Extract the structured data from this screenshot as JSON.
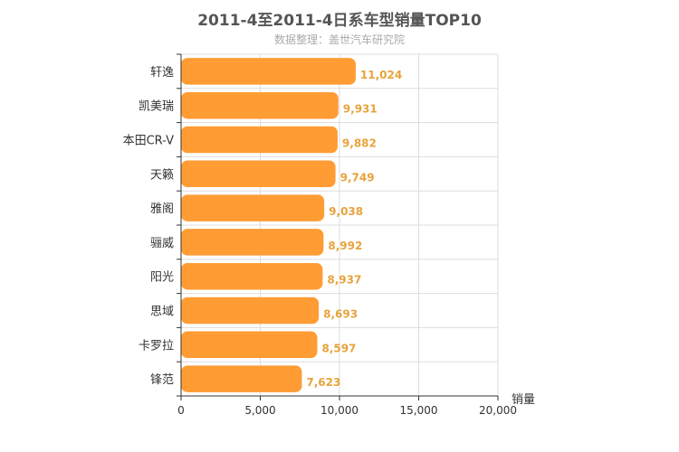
{
  "title": "2011-4至2011-4日系车型销量TOP10",
  "subtitle": "数据整理：盖世汽车研究院",
  "colors": {
    "bar": "#ff9c34",
    "value_label": "#e8a33c",
    "grid": "#dddddd",
    "axis": "#333333"
  },
  "chart_data": {
    "type": "bar",
    "orientation": "horizontal",
    "categories": [
      "轩逸",
      "凯美瑞",
      "本田CR-V",
      "天籁",
      "雅阁",
      "骊威",
      "阳光",
      "思域",
      "卡罗拉",
      "锋范"
    ],
    "values": [
      11024,
      9931,
      9882,
      9749,
      9038,
      8992,
      8937,
      8693,
      8597,
      7623
    ],
    "value_labels": [
      "11,024",
      "9,931",
      "9,882",
      "9,749",
      "9,038",
      "8,992",
      "8,937",
      "8,693",
      "8,597",
      "7,623"
    ],
    "xlabel": "销量",
    "ylabel": "",
    "xlim": [
      0,
      20000
    ],
    "x_ticks": [
      0,
      5000,
      10000,
      15000,
      20000
    ],
    "x_tick_labels": [
      "0",
      "5,000",
      "10,000",
      "15,000",
      "20,000"
    ],
    "grid": true
  }
}
